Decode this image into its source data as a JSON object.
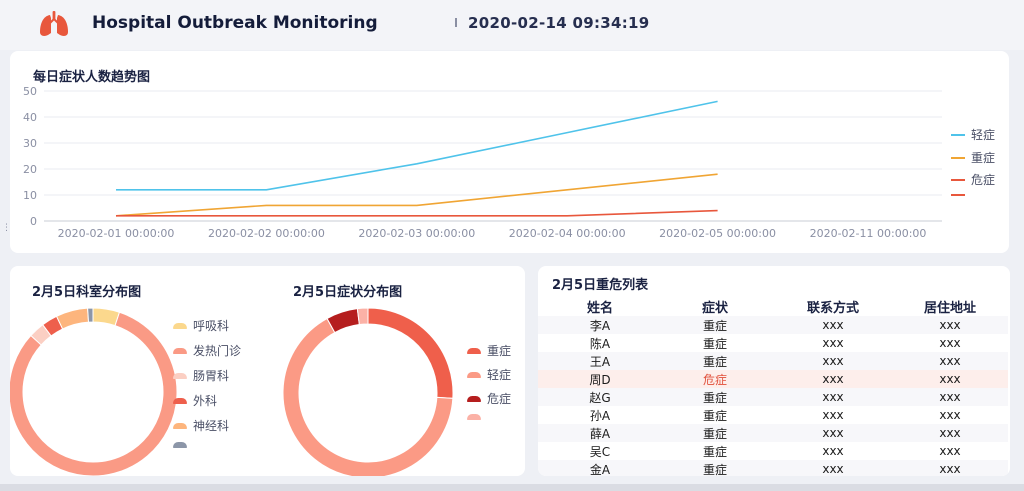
{
  "header": {
    "title": "Hospital Outbreak Monitoring",
    "datetime": "2020-02-14 09:34:19",
    "logo_icon": "lungs-icon",
    "logo_color": "#e8573c"
  },
  "trend_chart": {
    "title": "每日症状人数趋势图",
    "chart_data": {
      "type": "line",
      "categories": [
        "2020-02-01 00:00:00",
        "2020-02-02 00:00:00",
        "2020-02-03 00:00:00",
        "2020-02-04 00:00:00",
        "2020-02-05 00:00:00",
        "2020-02-11 00:00:00"
      ],
      "ylim": [
        0,
        50
      ],
      "yticks": [
        0,
        10,
        20,
        30,
        40,
        50
      ],
      "grid": true,
      "legend_position": "right",
      "series": [
        {
          "name": "轻症",
          "color": "#4fc3ea",
          "values": [
            12,
            12,
            22,
            34,
            46,
            null
          ]
        },
        {
          "name": "重症",
          "color": "#f0a534",
          "values": [
            2,
            6,
            6,
            12,
            18,
            null
          ]
        },
        {
          "name": "危症",
          "color": "#e8573c",
          "values": [
            2,
            2,
            2,
            2,
            4,
            null
          ]
        },
        {
          "name": "",
          "color": "#e8573c",
          "values": [
            null,
            null,
            null,
            null,
            null,
            null
          ]
        }
      ]
    }
  },
  "dept_chart": {
    "title": "2月5日科室分布图",
    "chart_data": {
      "type": "pie",
      "donut": true,
      "legend_position": "right",
      "labels": [
        "呼吸科",
        "发热门诊",
        "肠胃科",
        "外科",
        "神经科",
        ""
      ],
      "values": [
        5,
        80,
        3,
        3,
        6,
        1
      ],
      "colors": [
        "#fbd88d",
        "#fa9a85",
        "#fbcfc3",
        "#ee5f4c",
        "#fdb57d",
        "#8c96a8"
      ]
    }
  },
  "symptom_chart": {
    "title": "2月5日症状分布图",
    "chart_data": {
      "type": "pie",
      "donut": true,
      "legend_position": "right",
      "labels": [
        "重症",
        "轻症",
        "危症",
        ""
      ],
      "values": [
        26,
        66,
        6,
        2
      ],
      "colors": [
        "#ef5f4b",
        "#fb9a85",
        "#b51e1e",
        "#fbb1a6"
      ]
    }
  },
  "critical_list": {
    "title": "2月5日重危列表",
    "columns": [
      "姓名",
      "症状",
      "联系方式",
      "居住地址"
    ],
    "rows": [
      {
        "name": "李A",
        "symptom": "重症",
        "contact": "xxx",
        "address": "xxx"
      },
      {
        "name": "陈A",
        "symptom": "重症",
        "contact": "xxx",
        "address": "xxx"
      },
      {
        "name": "王A",
        "symptom": "重症",
        "contact": "xxx",
        "address": "xxx"
      },
      {
        "name": "周D",
        "symptom": "危症",
        "contact": "xxx",
        "address": "xxx"
      },
      {
        "name": "赵G",
        "symptom": "重症",
        "contact": "xxx",
        "address": "xxx"
      },
      {
        "name": "孙A",
        "symptom": "重症",
        "contact": "xxx",
        "address": "xxx"
      },
      {
        "name": "薛A",
        "symptom": "重症",
        "contact": "xxx",
        "address": "xxx"
      },
      {
        "name": "吴C",
        "symptom": "重症",
        "contact": "xxx",
        "address": "xxx"
      },
      {
        "name": "金A",
        "symptom": "重症",
        "contact": "xxx",
        "address": "xxx"
      }
    ]
  }
}
